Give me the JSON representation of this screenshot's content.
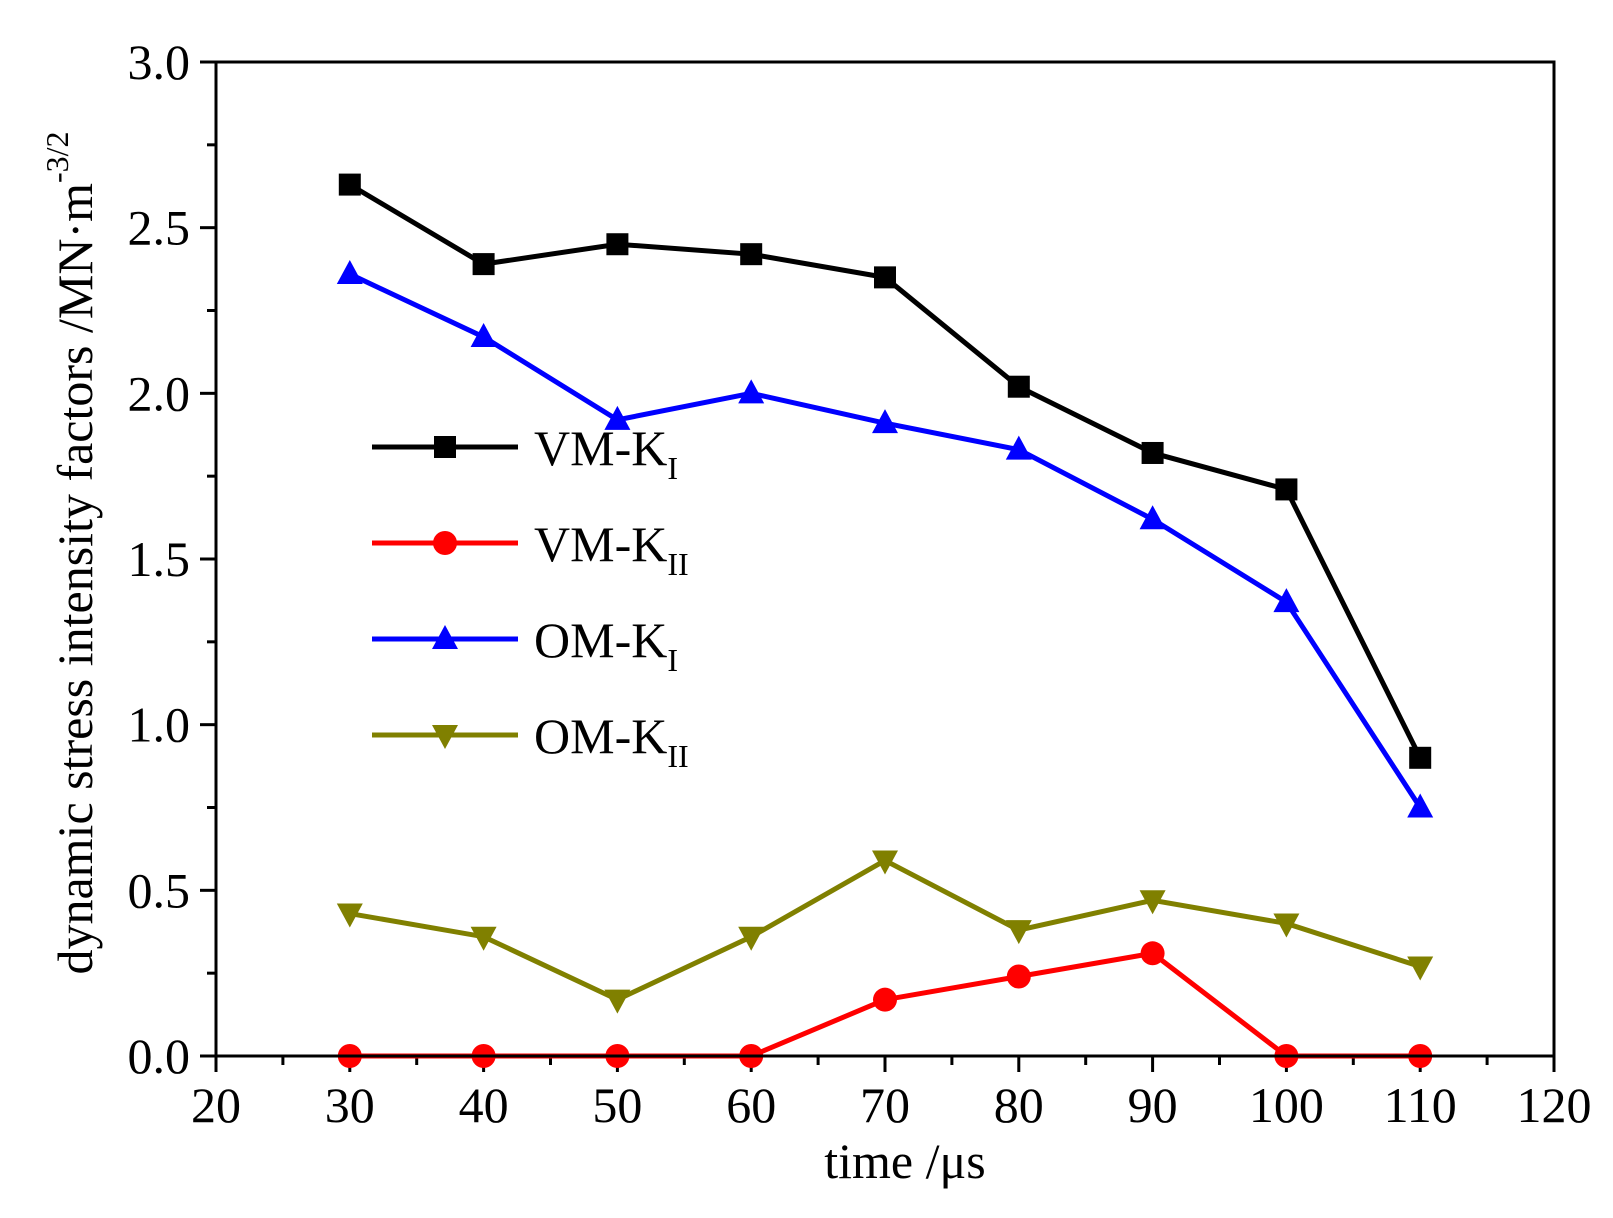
{
  "chart_data": {
    "type": "line",
    "xlabel": "time /μs",
    "ylabel": "dynamic stress intensity factors /MN·m",
    "ylabel_sup": "-3/2",
    "xlim": [
      20,
      120
    ],
    "ylim": [
      0.0,
      3.0
    ],
    "xticks": [
      20,
      30,
      40,
      50,
      60,
      70,
      80,
      90,
      100,
      110,
      120
    ],
    "xtick_labels": [
      "20",
      "30",
      "40",
      "50",
      "60",
      "70",
      "80",
      "90",
      "100",
      "110",
      "120"
    ],
    "yticks": [
      0.0,
      0.5,
      1.0,
      1.5,
      2.0,
      2.5,
      3.0
    ],
    "ytick_labels": [
      "0.0",
      "0.5",
      "1.0",
      "1.5",
      "2.0",
      "2.5",
      "3.0"
    ],
    "x": [
      30,
      40,
      50,
      60,
      70,
      80,
      90,
      100,
      110
    ],
    "legend_position": "center-left",
    "grid": false,
    "series": [
      {
        "name": "VM-KI",
        "label_main": "VM-K",
        "label_sub": "I",
        "color": "#000000",
        "marker": "square",
        "values": [
          2.63,
          2.39,
          2.45,
          2.42,
          2.35,
          2.02,
          1.82,
          1.71,
          0.9
        ]
      },
      {
        "name": "VM-KII",
        "label_main": "VM-K",
        "label_sub": "II",
        "color": "#ff0000",
        "marker": "circle",
        "values": [
          0.0,
          0.0,
          0.0,
          0.0,
          0.17,
          0.24,
          0.31,
          0.0,
          0.0
        ]
      },
      {
        "name": "OM-KI",
        "label_main": "OM-K",
        "label_sub": "I",
        "color": "#0000ff",
        "marker": "triangle-up",
        "values": [
          2.36,
          2.17,
          1.92,
          2.0,
          1.91,
          1.83,
          1.62,
          1.37,
          0.75
        ]
      },
      {
        "name": "OM-KII",
        "label_main": "OM-K",
        "label_sub": "II",
        "color": "#808000",
        "marker": "triangle-down",
        "values": [
          0.43,
          0.36,
          0.17,
          0.36,
          0.59,
          0.38,
          0.47,
          0.4,
          0.27
        ]
      }
    ]
  }
}
